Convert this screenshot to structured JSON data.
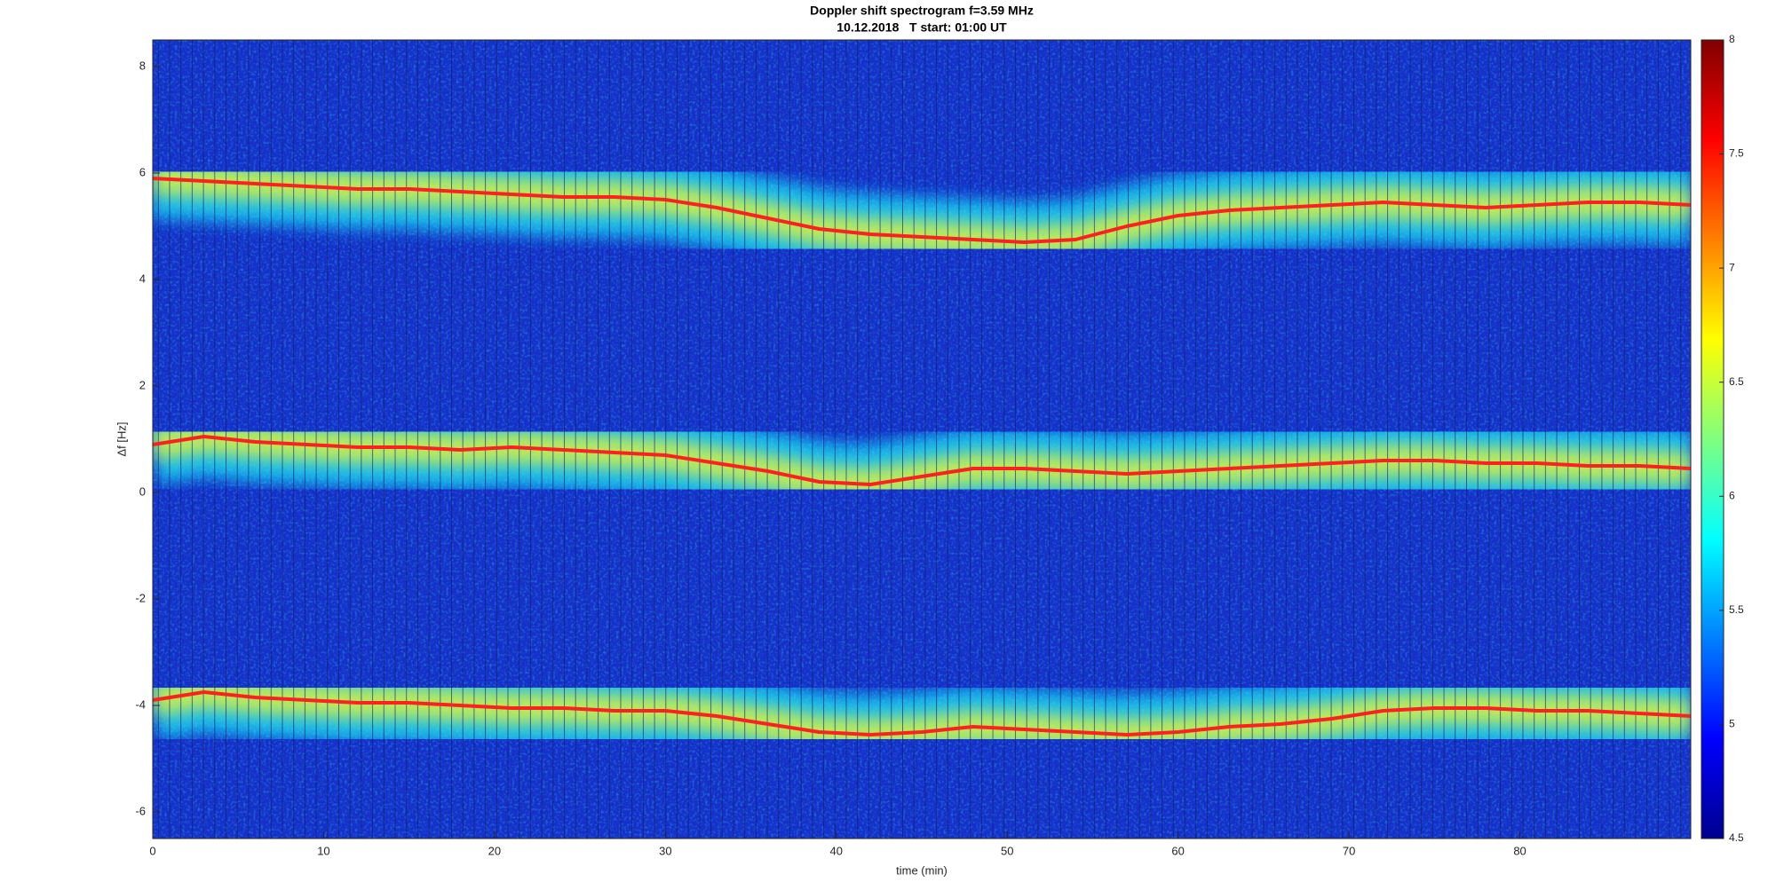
{
  "chart_data": {
    "type": "spectrogram",
    "title": "Doppler shift spectrogram f=3.59 MHz",
    "subtitle": "10.12.2018   T start: 01:00 UT",
    "x_label": "time (min)",
    "y_label": "Δf [Hz]",
    "xlim": [
      0,
      90
    ],
    "xticks": [
      0,
      10,
      20,
      30,
      40,
      50,
      60,
      70,
      80
    ],
    "ylim": [
      -6.5,
      8.5
    ],
    "yticks": [
      -6,
      -4,
      -2,
      0,
      2,
      4,
      6,
      8
    ],
    "colormap": "jet",
    "clim": [
      4.5,
      8
    ],
    "cticks": [
      4.5,
      5,
      5.5,
      6,
      6.5,
      7,
      7.5,
      8
    ],
    "x": [
      0,
      3,
      6,
      9,
      12,
      15,
      18,
      21,
      24,
      27,
      30,
      33,
      36,
      39,
      42,
      45,
      48,
      51,
      54,
      57,
      60,
      63,
      66,
      69,
      72,
      75,
      78,
      81,
      84,
      87,
      90
    ],
    "series": [
      {
        "color": "#ff2020",
        "values": [
          5.9,
          5.85,
          5.8,
          5.75,
          5.7,
          5.7,
          5.65,
          5.6,
          5.55,
          5.55,
          5.5,
          5.35,
          5.15,
          4.95,
          4.85,
          4.8,
          4.75,
          4.7,
          4.75,
          5.0,
          5.2,
          5.3,
          5.35,
          5.4,
          5.45,
          5.4,
          5.35,
          5.4,
          5.45,
          5.45,
          5.4
        ]
      },
      {
        "color": "#ff2020",
        "values": [
          0.9,
          1.05,
          0.95,
          0.9,
          0.85,
          0.85,
          0.8,
          0.85,
          0.8,
          0.75,
          0.7,
          0.55,
          0.4,
          0.2,
          0.15,
          0.3,
          0.45,
          0.45,
          0.4,
          0.35,
          0.4,
          0.45,
          0.5,
          0.55,
          0.6,
          0.6,
          0.55,
          0.55,
          0.5,
          0.5,
          0.45
        ]
      },
      {
        "color": "#ff2020",
        "values": [
          -3.9,
          -3.75,
          -3.85,
          -3.9,
          -3.95,
          -3.95,
          -4.0,
          -4.05,
          -4.05,
          -4.1,
          -4.1,
          -4.2,
          -4.35,
          -4.5,
          -4.55,
          -4.5,
          -4.4,
          -4.45,
          -4.5,
          -4.55,
          -4.5,
          -4.4,
          -4.35,
          -4.25,
          -4.1,
          -4.05,
          -4.05,
          -4.1,
          -4.1,
          -4.15,
          -4.2
        ]
      }
    ]
  }
}
